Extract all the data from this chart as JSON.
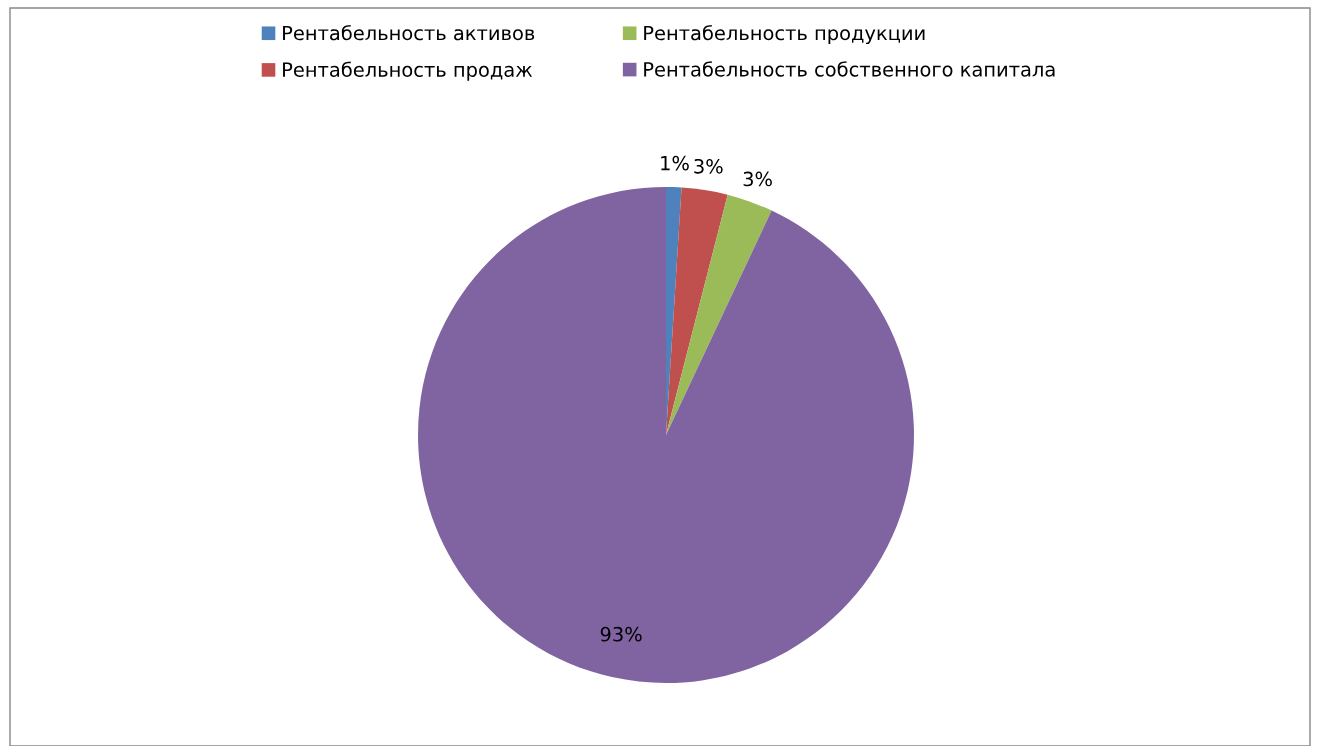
{
  "chart_data": {
    "type": "pie",
    "categories": [
      "Рентабельность активов",
      "Рентабельность продаж",
      "Рентабельность продукции",
      "Рентабельность собственного капитала"
    ],
    "values": [
      1,
      3,
      3,
      93
    ],
    "colors": [
      "#4f81bd",
      "#c0504d",
      "#9bbb59",
      "#8064a2"
    ],
    "value_labels": [
      "1%",
      "3%",
      "3%",
      "93%"
    ],
    "legend": "top"
  }
}
